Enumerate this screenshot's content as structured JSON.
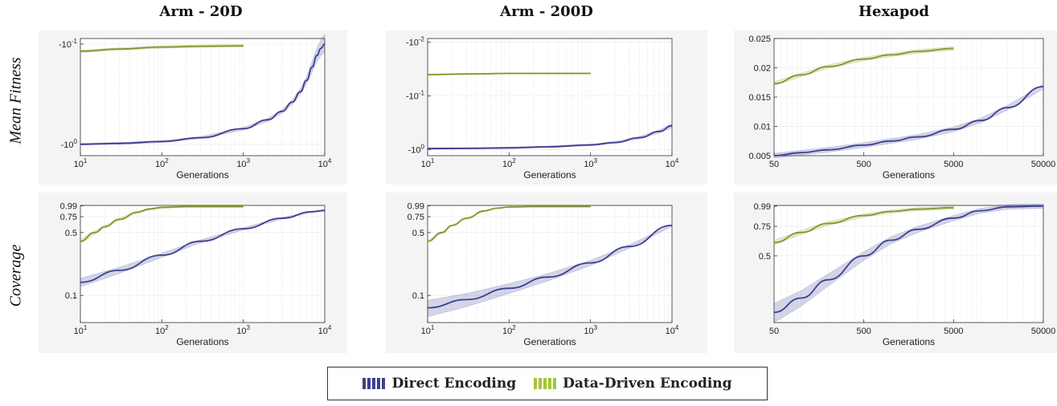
{
  "column_titles": [
    "Arm - 20D",
    "Arm - 200D",
    "Hexapod"
  ],
  "row_labels": [
    "Mean Fitness",
    "Coverage"
  ],
  "legend": [
    {
      "name": "Direct Encoding",
      "color": "#3d3f91"
    },
    {
      "name": "Data-Driven Encoding",
      "color": "#a4c639"
    }
  ],
  "chart_data": [
    {
      "type": "line",
      "panel": "fitness-arm20",
      "xlabel": "Generations",
      "ylabel": "",
      "xscale": "log",
      "xlim": [
        10,
        10000
      ],
      "xticks": [
        10,
        100,
        1000,
        10000
      ],
      "xtick_labels": [
        "10^1",
        "10^2",
        "10^3",
        "10^4"
      ],
      "yscale": "neglog",
      "ylim": [
        -1.3,
        -0.088
      ],
      "yticks": [
        -1,
        -0.1
      ],
      "ytick_labels": [
        "-10^0",
        "-10^-1"
      ],
      "series": [
        {
          "color": "#3d3f91",
          "x": [
            10,
            30,
            100,
            300,
            1000,
            2000,
            3000,
            4000,
            5000,
            6000,
            7000,
            8000,
            9000,
            10000
          ],
          "y": [
            -1.0,
            -0.98,
            -0.94,
            -0.86,
            -0.7,
            -0.57,
            -0.47,
            -0.38,
            -0.3,
            -0.23,
            -0.17,
            -0.13,
            -0.11,
            -0.1
          ],
          "band": 0.02
        },
        {
          "color": "#7f9a2a",
          "x": [
            10,
            30,
            100,
            300,
            1000
          ],
          "y": [
            -0.118,
            -0.112,
            -0.107,
            -0.105,
            -0.104
          ],
          "band": 0.003
        }
      ]
    },
    {
      "type": "line",
      "panel": "fitness-arm200",
      "xlabel": "Generations",
      "ylabel": "",
      "xscale": "log",
      "xlim": [
        10,
        10000
      ],
      "xticks": [
        10,
        100,
        1000,
        10000
      ],
      "xtick_labels": [
        "10^1",
        "10^2",
        "10^3",
        "10^4"
      ],
      "yscale": "neglog",
      "ylim": [
        -1.3,
        -0.0085
      ],
      "yticks": [
        -1,
        -0.1,
        -0.01
      ],
      "ytick_labels": [
        "-10^0",
        "-10^-1",
        "-10^-2"
      ],
      "series": [
        {
          "color": "#3d3f91",
          "x": [
            10,
            30,
            100,
            300,
            1000,
            2000,
            4000,
            7000,
            10000
          ],
          "y": [
            -0.96,
            -0.95,
            -0.93,
            -0.89,
            -0.82,
            -0.74,
            -0.6,
            -0.46,
            -0.36
          ],
          "band": 0.03
        },
        {
          "color": "#7f9a2a",
          "x": [
            10,
            30,
            100,
            300,
            1000
          ],
          "y": [
            -0.04,
            -0.039,
            -0.038,
            -0.038,
            -0.038
          ],
          "band": 0.001
        }
      ]
    },
    {
      "type": "line",
      "panel": "fitness-hexapod",
      "xlabel": "Generations",
      "ylabel": "",
      "xscale": "log",
      "xlim": [
        50,
        50000
      ],
      "xticks": [
        50,
        500,
        5000,
        50000
      ],
      "xtick_labels": [
        "50",
        "500",
        "5000",
        "50000"
      ],
      "yscale": "linear",
      "ylim": [
        0.005,
        0.025
      ],
      "yticks": [
        0.005,
        0.01,
        0.015,
        0.02,
        0.025
      ],
      "ytick_labels": [
        "0.005",
        "0.01",
        "0.015",
        "0.02",
        "0.025"
      ],
      "series": [
        {
          "color": "#3d3f91",
          "x": [
            50,
            100,
            200,
            500,
            1000,
            2000,
            5000,
            10000,
            20000,
            50000
          ],
          "y": [
            0.005,
            0.0055,
            0.006,
            0.0068,
            0.0075,
            0.0082,
            0.0095,
            0.011,
            0.0132,
            0.0168
          ],
          "band": 0.0004
        },
        {
          "color": "#7f9a2a",
          "x": [
            50,
            100,
            200,
            500,
            1000,
            2000,
            5000
          ],
          "y": [
            0.0173,
            0.0188,
            0.0202,
            0.0215,
            0.0222,
            0.0228,
            0.0233
          ],
          "band": 0.0003
        }
      ]
    },
    {
      "type": "line",
      "panel": "coverage-arm20",
      "xlabel": "Generations",
      "ylabel": "",
      "xscale": "log",
      "xlim": [
        10,
        10000
      ],
      "xticks": [
        10,
        100,
        1000,
        10000
      ],
      "xtick_labels": [
        "10^1",
        "10^2",
        "10^3",
        "10^4"
      ],
      "yscale": "log",
      "ylim": [
        0.05,
        1.0
      ],
      "yticks": [
        0.1,
        0.5,
        0.75,
        0.99
      ],
      "ytick_labels": [
        "0.1",
        "0.5",
        "0.75",
        "0.99"
      ],
      "series": [
        {
          "color": "#3d3f91",
          "x": [
            10,
            30,
            100,
            300,
            1000,
            3000,
            7000,
            10000
          ],
          "y": [
            0.14,
            0.19,
            0.28,
            0.4,
            0.55,
            0.72,
            0.85,
            0.88
          ],
          "band": 0.015
        },
        {
          "color": "#7f9a2a",
          "x": [
            10,
            15,
            20,
            30,
            50,
            70,
            100,
            200,
            1000
          ],
          "y": [
            0.4,
            0.5,
            0.58,
            0.7,
            0.84,
            0.91,
            0.95,
            0.97,
            0.97
          ],
          "band": 0.02
        }
      ]
    },
    {
      "type": "line",
      "panel": "coverage-arm200",
      "xlabel": "Generations",
      "ylabel": "",
      "xscale": "log",
      "xlim": [
        10,
        10000
      ],
      "xticks": [
        10,
        100,
        1000,
        10000
      ],
      "xtick_labels": [
        "10^1",
        "10^2",
        "10^3",
        "10^4"
      ],
      "yscale": "log",
      "ylim": [
        0.05,
        1.0
      ],
      "yticks": [
        0.1,
        0.5,
        0.75,
        0.99
      ],
      "ytick_labels": [
        "0.1",
        "0.5",
        "0.75",
        "0.99"
      ],
      "series": [
        {
          "color": "#3d3f91",
          "x": [
            10,
            30,
            100,
            300,
            1000,
            3000,
            10000
          ],
          "y": [
            0.073,
            0.09,
            0.12,
            0.16,
            0.23,
            0.35,
            0.6
          ],
          "band": 0.015
        },
        {
          "color": "#7f9a2a",
          "x": [
            10,
            15,
            20,
            30,
            50,
            70,
            100,
            200,
            1000
          ],
          "y": [
            0.4,
            0.5,
            0.6,
            0.72,
            0.87,
            0.93,
            0.96,
            0.97,
            0.97
          ],
          "band": 0.01
        }
      ]
    },
    {
      "type": "line",
      "panel": "coverage-hexapod",
      "xlabel": "Generations",
      "ylabel": "",
      "xscale": "log",
      "xlim": [
        50,
        50000
      ],
      "xticks": [
        50,
        500,
        5000,
        50000
      ],
      "xtick_labels": [
        "50",
        "500",
        "5000",
        "50000"
      ],
      "yscale": "log",
      "ylim": [
        0.2,
        1.0
      ],
      "yticks": [
        0.5,
        0.75,
        0.99
      ],
      "ytick_labels": [
        "0.5",
        "0.75",
        "0.99"
      ],
      "series": [
        {
          "color": "#3d3f91",
          "x": [
            50,
            100,
            200,
            500,
            1000,
            2000,
            5000,
            10000,
            20000,
            50000
          ],
          "y": [
            0.23,
            0.28,
            0.36,
            0.5,
            0.62,
            0.72,
            0.84,
            0.93,
            0.98,
            0.99
          ],
          "band": 0.03
        },
        {
          "color": "#7f9a2a",
          "x": [
            50,
            100,
            200,
            500,
            1000,
            2000,
            5000
          ],
          "y": [
            0.6,
            0.69,
            0.78,
            0.87,
            0.92,
            0.95,
            0.97
          ],
          "band": 0.02
        }
      ]
    }
  ]
}
